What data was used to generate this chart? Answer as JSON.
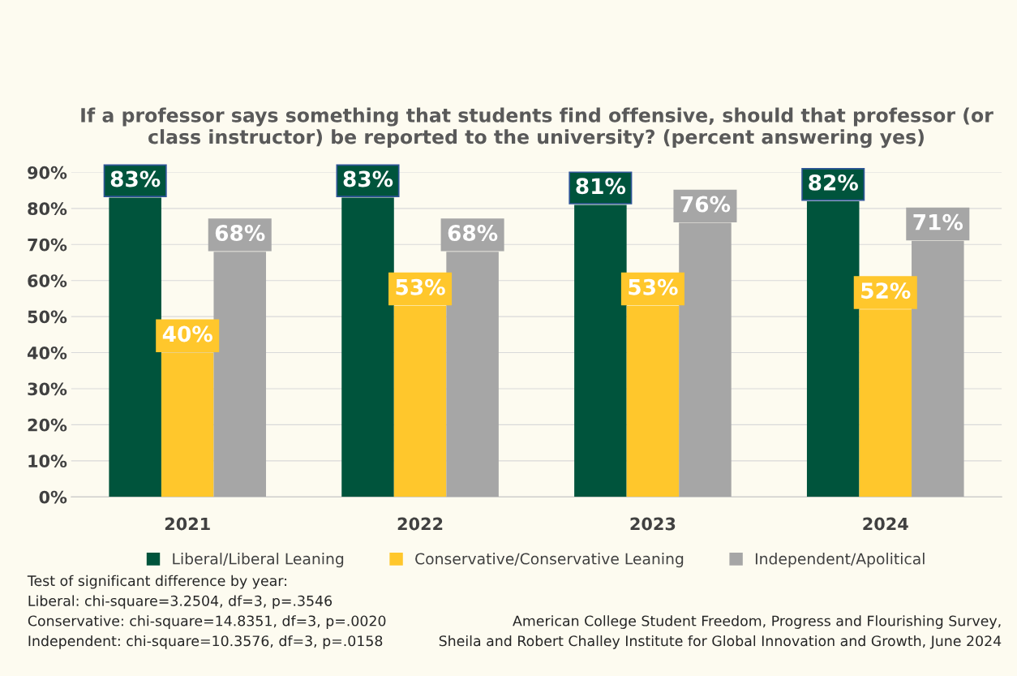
{
  "chart_data": {
    "type": "bar",
    "title": "If a professor says something that students find offensive, should that professor (or class instructor) be reported to the university? (percent answering yes)",
    "categories": [
      "2021",
      "2022",
      "2023",
      "2024"
    ],
    "series": [
      {
        "name": "Liberal/Liberal Leaning",
        "color": "#00543c",
        "values": [
          83,
          83,
          81,
          82
        ],
        "value_labels": [
          "83%",
          "83%",
          "81%",
          "82%"
        ]
      },
      {
        "name": "Conservative/Conservative Leaning",
        "color": "#ffc72c",
        "values": [
          40,
          53,
          53,
          52
        ],
        "value_labels": [
          "40%",
          "53%",
          "53%",
          "52%"
        ]
      },
      {
        "name": "Independent/Apolitical",
        "color": "#a6a6a6",
        "values": [
          68,
          68,
          76,
          71
        ],
        "value_labels": [
          "68%",
          "68%",
          "76%",
          "71%"
        ]
      }
    ],
    "ylim": [
      0,
      90
    ],
    "yticks": [
      {
        "value": 0,
        "label": "0%"
      },
      {
        "value": 10,
        "label": "10%"
      },
      {
        "value": 20,
        "label": "20%"
      },
      {
        "value": 30,
        "label": "30%"
      },
      {
        "value": 40,
        "label": "40%"
      },
      {
        "value": 50,
        "label": "50%"
      },
      {
        "value": 60,
        "label": "60%"
      },
      {
        "value": 70,
        "label": "70%"
      },
      {
        "value": 80,
        "label": "80%"
      },
      {
        "value": 90,
        "label": "90%"
      }
    ],
    "grid": "y",
    "legend": "bottom",
    "annotations": [
      "Test of significant difference by year:\nLiberal: chi-square=3.2504, df=3, p=.3546\nConservative: chi-square=14.8351, df=3, p=.0020\nIndependent: chi-square=10.3576, df=3, p=.0158",
      "American College Student Freedom, Progress and Flourishing Survey,\nSheila and Robert Challey Institute for Global Innovation and Growth, June 2024"
    ]
  }
}
